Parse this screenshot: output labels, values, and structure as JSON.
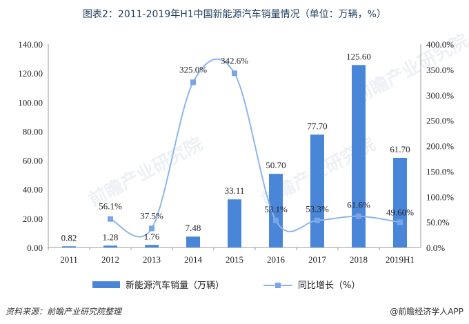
{
  "title": "图表2：2011-2019年H1中国新能源汽车销量情况（单位：万辆，%）",
  "source": "资料来源：前瞻产业研究院整理",
  "brand": "@前瞻经济学人APP",
  "watermark": "前瞻产业研究院",
  "colors": {
    "bar": "#4a86d8",
    "line": "#8fb6ea",
    "marker": "#7aa6e6",
    "axis": "#999999"
  },
  "chart_data": {
    "type": "bar",
    "categories": [
      "2011",
      "2012",
      "2013",
      "2014",
      "2015",
      "2016",
      "2017",
      "2018",
      "2019H1"
    ],
    "series": [
      {
        "name": "新能源汽车销量（万辆）",
        "type": "bar",
        "axis": "left",
        "values": [
          0.82,
          1.28,
          1.76,
          7.48,
          33.11,
          50.7,
          77.7,
          125.6,
          61.7
        ],
        "labels": [
          "0.82",
          "1.28",
          "1.76",
          "7.48",
          "33.11",
          "50.70",
          "77.70",
          "125.60",
          "61.70"
        ]
      },
      {
        "name": "同比增长（%）",
        "type": "line",
        "axis": "right",
        "smooth": true,
        "values": [
          null,
          56.1,
          37.5,
          325.0,
          342.6,
          53.1,
          53.3,
          61.6,
          49.6
        ],
        "labels": [
          "",
          "56.1%",
          "37.5%",
          "325.0%",
          "342.6%",
          "53.1%",
          "53.3%",
          "61.6%",
          "49.60%"
        ]
      }
    ],
    "ylim_left": [
      0,
      140
    ],
    "yticks_left": [
      "0.00",
      "20.00",
      "40.00",
      "60.00",
      "80.00",
      "100.00",
      "120.00",
      "140.00"
    ],
    "ylim_right": [
      0,
      400
    ],
    "yticks_right": [
      "0.0%",
      "50.0%",
      "100.0%",
      "150.0%",
      "200.0%",
      "250.0%",
      "300.0%",
      "350.0%",
      "400.0%"
    ],
    "grid": false,
    "legend_position": "bottom"
  }
}
